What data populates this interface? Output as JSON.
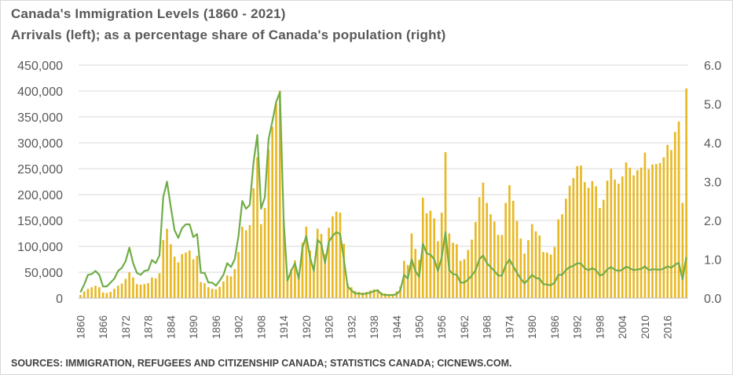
{
  "chart_data": {
    "type": "bar+line",
    "title": "Canada's  Immigration  Levels  (1860 - 2021)",
    "subtitle": "Arrivals  (left); as a percentage  share  of Canada's  population  (right)",
    "source": "SOURCES: IMMIGRATION, REFUGEES AND CITIZENSHIP CANADA; STATISTICS CANADA; CICNEWS.COM.",
    "colors": {
      "bars": "#e8b823",
      "line": "#70ad47",
      "axis_text": "#595959",
      "grid": "#d9d9d9"
    },
    "left_axis": {
      "range": [
        0,
        450000
      ],
      "ticks": [
        "0",
        "50,000",
        "100,000",
        "150,000",
        "200,000",
        "250,000",
        "300,000",
        "350,000",
        "400,000",
        "450,000"
      ]
    },
    "right_axis": {
      "range": [
        0,
        6.0
      ],
      "ticks": [
        "0.0",
        "1.0",
        "2.0",
        "3.0",
        "4.0",
        "5.0",
        "6.0"
      ]
    },
    "x_tick_labels": [
      "1860",
      "1866",
      "1872",
      "1878",
      "1884",
      "1890",
      "1896",
      "1902",
      "1908",
      "1914",
      "1920",
      "1926",
      "1932",
      "1938",
      "1944",
      "1950",
      "1956",
      "1962",
      "1968",
      "1974",
      "1980",
      "1986",
      "1992",
      "1998",
      "2004",
      "2010",
      "2016"
    ],
    "anchors_arrivals": [
      [
        1860,
        6000
      ],
      [
        1861,
        13000
      ],
      [
        1862,
        18000
      ],
      [
        1863,
        21000
      ],
      [
        1864,
        24000
      ],
      [
        1865,
        21000
      ],
      [
        1866,
        11000
      ],
      [
        1867,
        10000
      ],
      [
        1868,
        12000
      ],
      [
        1869,
        18000
      ],
      [
        1870,
        24000
      ],
      [
        1871,
        28000
      ],
      [
        1872,
        37000
      ],
      [
        1873,
        50000
      ],
      [
        1874,
        40000
      ],
      [
        1875,
        27000
      ],
      [
        1876,
        26000
      ],
      [
        1877,
        27000
      ],
      [
        1878,
        29000
      ],
      [
        1879,
        40000
      ],
      [
        1880,
        38000
      ],
      [
        1881,
        48000
      ],
      [
        1882,
        112000
      ],
      [
        1883,
        134000
      ],
      [
        1884,
        104000
      ],
      [
        1885,
        80000
      ],
      [
        1886,
        69000
      ],
      [
        1887,
        85000
      ],
      [
        1888,
        88000
      ],
      [
        1889,
        92000
      ],
      [
        1890,
        75000
      ],
      [
        1891,
        82000
      ],
      [
        1892,
        31000
      ],
      [
        1893,
        29000
      ],
      [
        1894,
        21000
      ],
      [
        1895,
        18000
      ],
      [
        1896,
        17000
      ],
      [
        1897,
        22000
      ],
      [
        1898,
        32000
      ],
      [
        1899,
        44000
      ],
      [
        1900,
        42000
      ],
      [
        1901,
        56000
      ],
      [
        1902,
        89000
      ],
      [
        1903,
        138000
      ],
      [
        1904,
        131000
      ],
      [
        1905,
        141000
      ],
      [
        1906,
        212000
      ],
      [
        1907,
        272000
      ],
      [
        1908,
        143000
      ],
      [
        1909,
        174000
      ],
      [
        1910,
        287000
      ],
      [
        1911,
        331000
      ],
      [
        1912,
        376000
      ],
      [
        1913,
        401000
      ],
      [
        1914,
        150000
      ],
      [
        1915,
        37000
      ],
      [
        1916,
        56000
      ],
      [
        1917,
        73000
      ],
      [
        1918,
        42000
      ],
      [
        1919,
        107000
      ],
      [
        1920,
        138000
      ],
      [
        1921,
        92000
      ],
      [
        1922,
        64000
      ],
      [
        1923,
        134000
      ],
      [
        1924,
        124000
      ],
      [
        1925,
        85000
      ],
      [
        1926,
        136000
      ],
      [
        1927,
        158000
      ],
      [
        1928,
        167000
      ],
      [
        1929,
        165000
      ],
      [
        1930,
        105000
      ],
      [
        1931,
        28000
      ],
      [
        1932,
        21000
      ],
      [
        1933,
        14000
      ],
      [
        1934,
        12000
      ],
      [
        1935,
        11000
      ],
      [
        1936,
        12000
      ],
      [
        1937,
        15000
      ],
      [
        1938,
        17000
      ],
      [
        1939,
        17000
      ],
      [
        1940,
        11000
      ],
      [
        1941,
        9000
      ],
      [
        1942,
        8000
      ],
      [
        1943,
        8000
      ],
      [
        1944,
        13000
      ],
      [
        1945,
        23000
      ],
      [
        1946,
        72000
      ],
      [
        1947,
        64000
      ],
      [
        1948,
        125000
      ],
      [
        1949,
        95000
      ],
      [
        1950,
        74000
      ],
      [
        1951,
        194000
      ],
      [
        1952,
        164000
      ],
      [
        1953,
        169000
      ],
      [
        1954,
        154000
      ],
      [
        1955,
        110000
      ],
      [
        1956,
        165000
      ],
      [
        1957,
        282000
      ],
      [
        1958,
        125000
      ],
      [
        1959,
        107000
      ],
      [
        1960,
        104000
      ],
      [
        1961,
        72000
      ],
      [
        1962,
        75000
      ],
      [
        1963,
        93000
      ],
      [
        1964,
        113000
      ],
      [
        1965,
        147000
      ],
      [
        1966,
        195000
      ],
      [
        1967,
        223000
      ],
      [
        1968,
        184000
      ],
      [
        1969,
        162000
      ],
      [
        1970,
        148000
      ],
      [
        1971,
        122000
      ],
      [
        1972,
        122000
      ],
      [
        1973,
        184000
      ],
      [
        1974,
        218000
      ],
      [
        1975,
        188000
      ],
      [
        1976,
        149000
      ],
      [
        1977,
        115000
      ],
      [
        1978,
        86000
      ],
      [
        1979,
        112000
      ],
      [
        1980,
        143000
      ],
      [
        1981,
        129000
      ],
      [
        1982,
        121000
      ],
      [
        1983,
        89000
      ],
      [
        1984,
        88000
      ],
      [
        1985,
        84000
      ],
      [
        1986,
        99000
      ],
      [
        1987,
        152000
      ],
      [
        1988,
        162000
      ],
      [
        1989,
        192000
      ],
      [
        1990,
        217000
      ],
      [
        1991,
        232000
      ],
      [
        1992,
        255000
      ],
      [
        1993,
        256000
      ],
      [
        1994,
        224000
      ],
      [
        1995,
        213000
      ],
      [
        1996,
        226000
      ],
      [
        1997,
        216000
      ],
      [
        1998,
        174000
      ],
      [
        1999,
        190000
      ],
      [
        2000,
        227000
      ],
      [
        2001,
        250000
      ],
      [
        2002,
        229000
      ],
      [
        2003,
        221000
      ],
      [
        2004,
        235000
      ],
      [
        2005,
        262000
      ],
      [
        2006,
        252000
      ],
      [
        2007,
        237000
      ],
      [
        2008,
        247000
      ],
      [
        2009,
        252000
      ],
      [
        2010,
        281000
      ],
      [
        2011,
        249000
      ],
      [
        2012,
        258000
      ],
      [
        2013,
        259000
      ],
      [
        2014,
        261000
      ],
      [
        2015,
        272000
      ],
      [
        2016,
        296000
      ],
      [
        2017,
        286000
      ],
      [
        2018,
        321000
      ],
      [
        2019,
        341000
      ],
      [
        2020,
        184000
      ],
      [
        2021,
        405000
      ]
    ],
    "anchors_share_pct": [
      [
        1860,
        0.15
      ],
      [
        1861,
        0.35
      ],
      [
        1862,
        0.6
      ],
      [
        1863,
        0.62
      ],
      [
        1864,
        0.7
      ],
      [
        1865,
        0.6
      ],
      [
        1866,
        0.3
      ],
      [
        1867,
        0.3
      ],
      [
        1868,
        0.4
      ],
      [
        1869,
        0.5
      ],
      [
        1870,
        0.7
      ],
      [
        1871,
        0.78
      ],
      [
        1872,
        0.95
      ],
      [
        1873,
        1.3
      ],
      [
        1874,
        0.9
      ],
      [
        1875,
        0.65
      ],
      [
        1876,
        0.6
      ],
      [
        1877,
        0.7
      ],
      [
        1878,
        0.72
      ],
      [
        1879,
        0.98
      ],
      [
        1880,
        0.9
      ],
      [
        1881,
        1.1
      ],
      [
        1882,
        2.6
      ],
      [
        1883,
        3.0
      ],
      [
        1884,
        2.35
      ],
      [
        1885,
        1.75
      ],
      [
        1886,
        1.55
      ],
      [
        1887,
        1.8
      ],
      [
        1888,
        1.9
      ],
      [
        1889,
        1.9
      ],
      [
        1890,
        1.57
      ],
      [
        1891,
        1.65
      ],
      [
        1892,
        0.65
      ],
      [
        1893,
        0.65
      ],
      [
        1894,
        0.4
      ],
      [
        1895,
        0.4
      ],
      [
        1896,
        0.32
      ],
      [
        1897,
        0.45
      ],
      [
        1898,
        0.6
      ],
      [
        1899,
        0.9
      ],
      [
        1900,
        0.8
      ],
      [
        1901,
        1.0
      ],
      [
        1902,
        1.6
      ],
      [
        1903,
        2.5
      ],
      [
        1904,
        2.3
      ],
      [
        1905,
        2.4
      ],
      [
        1906,
        3.5
      ],
      [
        1907,
        4.2
      ],
      [
        1908,
        2.3
      ],
      [
        1909,
        2.6
      ],
      [
        1910,
        4.1
      ],
      [
        1911,
        4.55
      ],
      [
        1912,
        5.05
      ],
      [
        1913,
        5.3
      ],
      [
        1914,
        2.0
      ],
      [
        1915,
        0.45
      ],
      [
        1916,
        0.7
      ],
      [
        1917,
        0.9
      ],
      [
        1918,
        0.5
      ],
      [
        1919,
        1.3
      ],
      [
        1920,
        1.6
      ],
      [
        1921,
        1.05
      ],
      [
        1922,
        0.7
      ],
      [
        1923,
        1.5
      ],
      [
        1924,
        1.4
      ],
      [
        1925,
        0.9
      ],
      [
        1926,
        1.45
      ],
      [
        1927,
        1.6
      ],
      [
        1928,
        1.7
      ],
      [
        1929,
        1.65
      ],
      [
        1930,
        1.0
      ],
      [
        1931,
        0.3
      ],
      [
        1932,
        0.2
      ],
      [
        1933,
        0.12
      ],
      [
        1934,
        0.12
      ],
      [
        1935,
        0.1
      ],
      [
        1936,
        0.12
      ],
      [
        1937,
        0.14
      ],
      [
        1938,
        0.18
      ],
      [
        1939,
        0.2
      ],
      [
        1940,
        0.1
      ],
      [
        1941,
        0.08
      ],
      [
        1942,
        0.08
      ],
      [
        1943,
        0.08
      ],
      [
        1944,
        0.1
      ],
      [
        1945,
        0.2
      ],
      [
        1946,
        0.6
      ],
      [
        1947,
        0.5
      ],
      [
        1948,
        1.0
      ],
      [
        1949,
        0.7
      ],
      [
        1950,
        0.55
      ],
      [
        1951,
        1.4
      ],
      [
        1952,
        1.15
      ],
      [
        1953,
        1.12
      ],
      [
        1954,
        1.0
      ],
      [
        1955,
        0.7
      ],
      [
        1956,
        1.05
      ],
      [
        1957,
        1.7
      ],
      [
        1958,
        0.72
      ],
      [
        1959,
        0.62
      ],
      [
        1960,
        0.6
      ],
      [
        1961,
        0.4
      ],
      [
        1962,
        0.4
      ],
      [
        1963,
        0.48
      ],
      [
        1964,
        0.58
      ],
      [
        1965,
        0.72
      ],
      [
        1966,
        1.0
      ],
      [
        1967,
        1.1
      ],
      [
        1968,
        0.9
      ],
      [
        1969,
        0.8
      ],
      [
        1970,
        0.7
      ],
      [
        1971,
        0.58
      ],
      [
        1972,
        0.58
      ],
      [
        1973,
        0.85
      ],
      [
        1974,
        1.0
      ],
      [
        1975,
        0.82
      ],
      [
        1976,
        0.65
      ],
      [
        1977,
        0.5
      ],
      [
        1978,
        0.38
      ],
      [
        1979,
        0.48
      ],
      [
        1980,
        0.6
      ],
      [
        1981,
        0.52
      ],
      [
        1982,
        0.5
      ],
      [
        1983,
        0.36
      ],
      [
        1984,
        0.35
      ],
      [
        1985,
        0.33
      ],
      [
        1986,
        0.4
      ],
      [
        1987,
        0.6
      ],
      [
        1988,
        0.6
      ],
      [
        1989,
        0.72
      ],
      [
        1990,
        0.8
      ],
      [
        1991,
        0.83
      ],
      [
        1992,
        0.9
      ],
      [
        1993,
        0.89
      ],
      [
        1994,
        0.77
      ],
      [
        1995,
        0.72
      ],
      [
        1996,
        0.77
      ],
      [
        1997,
        0.72
      ],
      [
        1998,
        0.58
      ],
      [
        1999,
        0.62
      ],
      [
        2000,
        0.74
      ],
      [
        2001,
        0.8
      ],
      [
        2002,
        0.73
      ],
      [
        2003,
        0.7
      ],
      [
        2004,
        0.73
      ],
      [
        2005,
        0.81
      ],
      [
        2006,
        0.77
      ],
      [
        2007,
        0.72
      ],
      [
        2008,
        0.74
      ],
      [
        2009,
        0.75
      ],
      [
        2010,
        0.82
      ],
      [
        2011,
        0.72
      ],
      [
        2012,
        0.74
      ],
      [
        2013,
        0.74
      ],
      [
        2014,
        0.73
      ],
      [
        2015,
        0.76
      ],
      [
        2016,
        0.82
      ],
      [
        2017,
        0.78
      ],
      [
        2018,
        0.86
      ],
      [
        2019,
        0.91
      ],
      [
        2020,
        0.48
      ],
      [
        2021,
        1.06
      ]
    ]
  }
}
